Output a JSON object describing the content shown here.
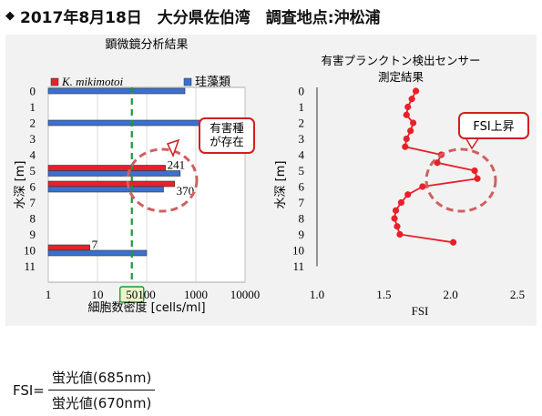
{
  "header": {
    "bullet": "◆",
    "title": "2017年8月18日　大分県佐伯湾　調査地点:沖松浦"
  },
  "formula": {
    "lhs": "FSI=",
    "numerator": "蛍光値(685nm)",
    "denominator": "蛍光値(670nm)"
  },
  "colors": {
    "karenia": "#e8202a",
    "diatom": "#3a70d0",
    "threshold_line": "#1a9a3c",
    "fsi_line": "#e8202a",
    "annotation_ellipse": "#d06060"
  },
  "chart_data": [
    {
      "type": "bar",
      "orientation": "horizontal",
      "title": "顕微鏡分析結果",
      "xlabel": "細胞数密度 [cells/ml]",
      "ylabel": "水深 [m]",
      "x_scale": "log",
      "xlim": [
        1,
        10000
      ],
      "x_ticks": [
        "1",
        "10",
        "100",
        "1000",
        "10000"
      ],
      "categories": [
        "0",
        "1",
        "2",
        "3",
        "4",
        "5",
        "6",
        "7",
        "8",
        "9",
        "10",
        "11"
      ],
      "legend": "top-right",
      "series": [
        {
          "name": "K. mikimotoi",
          "color": "#e8202a",
          "values": [
            null,
            null,
            null,
            null,
            null,
            241,
            370,
            null,
            null,
            null,
            7,
            null
          ]
        },
        {
          "name": "珪藻類",
          "color": "#3a70d0",
          "values": [
            600,
            null,
            10000,
            null,
            null,
            480,
            220,
            null,
            null,
            null,
            100,
            null
          ]
        }
      ],
      "data_labels": [
        {
          "depth": 5,
          "text": "241"
        },
        {
          "depth": 6,
          "text": "370"
        },
        {
          "depth": 10,
          "text": "7"
        }
      ],
      "threshold": {
        "value": 50,
        "label": "50"
      },
      "annotation": "有害種\nが存在"
    },
    {
      "type": "line",
      "title": "有害プランクトン検出センサー\n測定結果",
      "xlabel": "FSI",
      "ylabel": "水深 [m]",
      "xlim": [
        1.0,
        2.5
      ],
      "x_ticks": [
        "1.0",
        "1.5",
        "2.0",
        "2.5"
      ],
      "ylim": [
        0,
        11
      ],
      "y_ticks": [
        "0",
        "1",
        "2",
        "3",
        "4",
        "5",
        "6",
        "7",
        "8",
        "9",
        "10",
        "11"
      ],
      "series": [
        {
          "color": "#e8202a",
          "points": [
            [
              1.74,
              0.0
            ],
            [
              1.71,
              0.5
            ],
            [
              1.68,
              1.0
            ],
            [
              1.67,
              1.5
            ],
            [
              1.72,
              2.0
            ],
            [
              1.7,
              2.5
            ],
            [
              1.67,
              3.0
            ],
            [
              1.66,
              3.5
            ],
            [
              1.93,
              4.0
            ],
            [
              1.9,
              4.5
            ],
            [
              2.18,
              5.0
            ],
            [
              2.2,
              5.5
            ],
            [
              1.79,
              6.0
            ],
            [
              1.68,
              6.5
            ],
            [
              1.63,
              7.0
            ],
            [
              1.59,
              7.5
            ],
            [
              1.58,
              8.0
            ],
            [
              1.6,
              8.5
            ],
            [
              1.62,
              9.0
            ],
            [
              2.02,
              9.5
            ]
          ]
        }
      ],
      "annotation": "FSI上昇"
    }
  ]
}
